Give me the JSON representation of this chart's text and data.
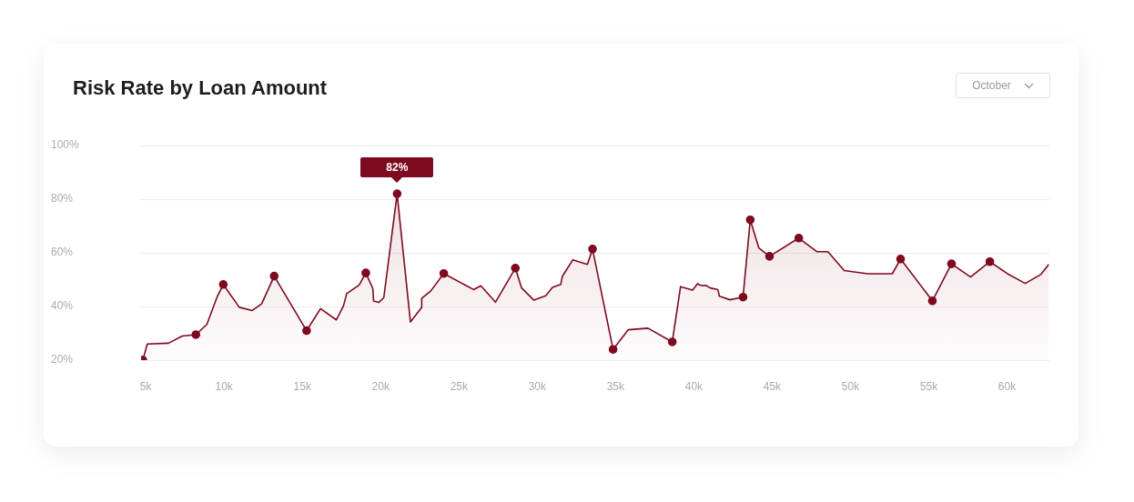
{
  "chart_data": {
    "type": "area",
    "title": "Risk Rate by Loan Amount",
    "annotations": [
      "October",
      {
        "text": "82%",
        "x": 21050,
        "y": 82
      }
    ],
    "xlim": [
      4700,
      62700
    ],
    "xticks": [
      {
        "value": 5000,
        "label": "5k"
      },
      {
        "value": 10000,
        "label": "10k"
      },
      {
        "value": 15000,
        "label": "15k"
      },
      {
        "value": 20000,
        "label": "20k"
      },
      {
        "value": 25000,
        "label": "25k"
      },
      {
        "value": 30000,
        "label": "30k"
      },
      {
        "value": 35000,
        "label": "35k"
      },
      {
        "value": 40000,
        "label": "40k"
      },
      {
        "value": 45000,
        "label": "45k"
      },
      {
        "value": 50000,
        "label": "50k"
      },
      {
        "value": 55000,
        "label": "55k"
      },
      {
        "value": 60000,
        "label": "60k"
      }
    ],
    "ylim": [
      20,
      100
    ],
    "yticks": [
      {
        "value": 20,
        "label": "20%"
      },
      {
        "value": 40,
        "label": "40%"
      },
      {
        "value": 60,
        "label": "60%"
      },
      {
        "value": 80,
        "label": "80%"
      },
      {
        "value": 100,
        "label": "100%"
      }
    ],
    "grid": "y",
    "legend": false,
    "series": [
      {
        "color": "#7d0a1f",
        "marker": "none",
        "x": [
          4810,
          5100,
          6450,
          7330,
          8200,
          8900,
          9550,
          9950,
          10970,
          11800,
          12400,
          13200,
          15270,
          16160,
          17170,
          17630,
          17830,
          18630,
          19050,
          19500,
          19550,
          19880,
          20200,
          21050,
          21900,
          22600,
          22620,
          23200,
          24030,
          25930,
          26400,
          27330,
          28600,
          29000,
          29770,
          30540,
          30970,
          31500,
          31600,
          32270,
          33200,
          33530,
          34840,
          35800,
          37070,
          38620,
          39150,
          39920,
          40230,
          40470,
          40760,
          41050,
          41530,
          41630,
          42300,
          43140,
          43600,
          44150,
          44830,
          46700,
          47870,
          48560,
          49600,
          51100,
          52670,
          53200,
          55230,
          56450,
          57670,
          58900,
          60000,
          61160,
          62170,
          62660
        ],
        "values": [
          20,
          26,
          26.3,
          29,
          29.5,
          33.3,
          43.5,
          48.2,
          39.7,
          38.5,
          41,
          51.3,
          31,
          39.2,
          35,
          40.3,
          44.8,
          48,
          52.5,
          46.7,
          42,
          41.5,
          43.3,
          82,
          34.2,
          39.5,
          43,
          45.8,
          52.3,
          46.3,
          47.7,
          41.6,
          54.3,
          46.9,
          42.4,
          44,
          47.1,
          48.2,
          51.2,
          57.4,
          55.7,
          61.4,
          24,
          31.3,
          31.9,
          26.8,
          47.4,
          46.1,
          48.5,
          47.8,
          47.9,
          46.9,
          46.3,
          43.8,
          42.5,
          43.5,
          72.3,
          61.8,
          58.7,
          65.5,
          60.4,
          60.4,
          53.4,
          52.2,
          52.2,
          57.7,
          42.1,
          55.9,
          51,
          56.7,
          52.3,
          48.6,
          52,
          55.7
        ]
      },
      {
        "type": "scatter",
        "color": "#7d0a1f",
        "marker": "circle",
        "x": [
          4810,
          8200,
          9950,
          13200,
          15270,
          19050,
          21050,
          24030,
          28600,
          33530,
          34840,
          38620,
          43140,
          43600,
          44830,
          46700,
          53200,
          55230,
          56450,
          58900
        ],
        "values": [
          20,
          29.5,
          48.2,
          51.3,
          31,
          52.5,
          82,
          52.3,
          54.3,
          61.4,
          24,
          26.8,
          43.5,
          72.3,
          58.7,
          65.5,
          57.7,
          42.1,
          55.9,
          56.7
        ]
      }
    ]
  }
}
